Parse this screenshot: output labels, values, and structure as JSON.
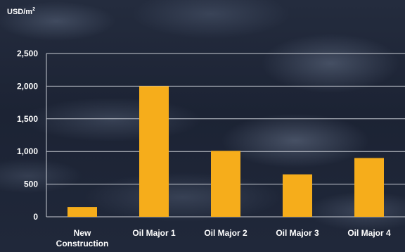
{
  "chart_data": {
    "type": "bar",
    "unit_label": "USD/m",
    "unit_superscript": "2",
    "categories": [
      "New\nConstruction",
      "Oil Major 1",
      "Oil Major 2",
      "Oil Major 3",
      "Oil Major 4"
    ],
    "values": [
      150,
      2000,
      1010,
      650,
      900
    ],
    "y_ticks": [
      0,
      500,
      1000,
      1500,
      2000,
      2500
    ],
    "y_tick_labels": [
      "0",
      "500",
      "1,000",
      "1,500",
      "2,000",
      "2,500"
    ],
    "ylim": [
      0,
      2500
    ],
    "grid": true,
    "bar_color": "#f6ad1b",
    "grid_color": "#c8ccd4"
  }
}
